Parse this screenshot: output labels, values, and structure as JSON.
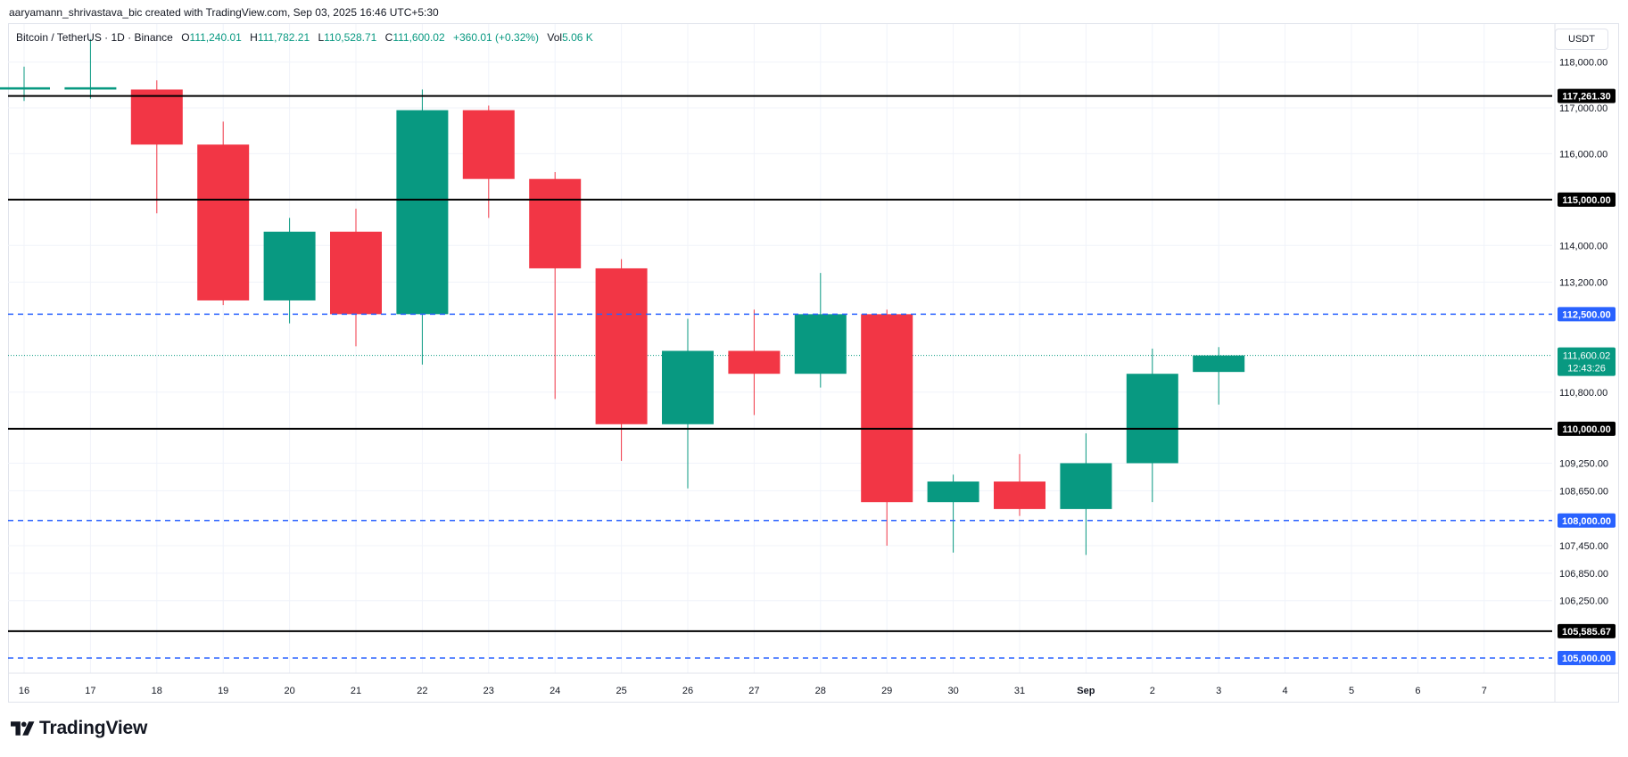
{
  "header": {
    "credit": "aaryamann_shrivastava_bic created with TradingView.com, Sep 03, 2025 16:46 UTC+5:30"
  },
  "legend": {
    "symbol": "Bitcoin / TetherUS · 1D · Binance",
    "o_label": "O",
    "o_value": "111,240.01",
    "h_label": "H",
    "h_value": "111,782.21",
    "l_label": "L",
    "l_value": "110,528.71",
    "c_label": "C",
    "c_value": "111,600.02",
    "change": "+360.01 (+0.32%)",
    "vol_label": "Vol",
    "vol_value": "5.06 K"
  },
  "currency": "USDT",
  "brand": {
    "name": "TradingView",
    "logo": "tradingview-logo-icon"
  },
  "colors": {
    "up": "#089981",
    "down": "#f23645",
    "support_line": "#000000",
    "dashed_line": "#2962ff",
    "grid": "#f0f3fa",
    "price_label": "#089981"
  },
  "chart_data": {
    "type": "candlestick",
    "interval": "1D",
    "x_labels": [
      "16",
      "17",
      "18",
      "19",
      "20",
      "21",
      "22",
      "23",
      "24",
      "25",
      "26",
      "27",
      "28",
      "29",
      "30",
      "31",
      "Sep",
      "2",
      "3",
      "4",
      "5",
      "6",
      "7"
    ],
    "candles": [
      {
        "x": "16",
        "open": 117400,
        "high": 117900,
        "low": 117150,
        "close": 117450
      },
      {
        "x": "17",
        "open": 117400,
        "high": 118500,
        "low": 117200,
        "close": 117450
      },
      {
        "x": "18",
        "open": 117400,
        "high": 117600,
        "low": 114700,
        "close": 116200
      },
      {
        "x": "19",
        "open": 116200,
        "high": 116700,
        "low": 112700,
        "close": 112800
      },
      {
        "x": "20",
        "open": 112800,
        "high": 114600,
        "low": 112300,
        "close": 114300
      },
      {
        "x": "21",
        "open": 114300,
        "high": 114800,
        "low": 111800,
        "close": 112500
      },
      {
        "x": "22",
        "open": 112500,
        "high": 117400,
        "low": 111400,
        "close": 116950
      },
      {
        "x": "23",
        "open": 116950,
        "high": 117050,
        "low": 114600,
        "close": 115450
      },
      {
        "x": "24",
        "open": 115450,
        "high": 115600,
        "low": 110650,
        "close": 113500
      },
      {
        "x": "25",
        "open": 113500,
        "high": 113700,
        "low": 109300,
        "close": 110100
      },
      {
        "x": "26",
        "open": 110100,
        "high": 112400,
        "low": 108700,
        "close": 111700
      },
      {
        "x": "27",
        "open": 111700,
        "high": 112600,
        "low": 110300,
        "close": 111200
      },
      {
        "x": "28",
        "open": 111200,
        "high": 113400,
        "low": 110900,
        "close": 112500
      },
      {
        "x": "29",
        "open": 112500,
        "high": 112600,
        "low": 107450,
        "close": 108400
      },
      {
        "x": "30",
        "open": 108400,
        "high": 109000,
        "low": 107300,
        "close": 108850
      },
      {
        "x": "31",
        "open": 108850,
        "high": 109450,
        "low": 108100,
        "close": 108250
      },
      {
        "x": "Sep",
        "open": 108250,
        "high": 109900,
        "low": 107250,
        "close": 109250
      },
      {
        "x": "2",
        "open": 109250,
        "high": 111750,
        "low": 108400,
        "close": 111200
      },
      {
        "x": "3",
        "open": 111240.01,
        "high": 111782.21,
        "low": 110528.71,
        "close": 111600.02
      }
    ],
    "y_ticks": [
      "118,000.00",
      "117,000.00",
      "116,000.00",
      "114,000.00",
      "113,200.00",
      "110,800.00",
      "109,250.00",
      "108,650.00",
      "107,450.00",
      "106,850.00",
      "106,250.00"
    ],
    "ylim": [
      104700,
      118800
    ],
    "horizontal_lines": [
      {
        "value": 117261.3,
        "label": "117,261.30",
        "style": "solid"
      },
      {
        "value": 115000,
        "label": "115,000.00",
        "style": "solid"
      },
      {
        "value": 112500,
        "label": "112,500.00",
        "style": "dashed"
      },
      {
        "value": 110000,
        "label": "110,000.00",
        "style": "solid"
      },
      {
        "value": 108000,
        "label": "108,000.00",
        "style": "dashed"
      },
      {
        "value": 105585.67,
        "label": "105,585.67",
        "style": "solid"
      },
      {
        "value": 105000,
        "label": "105,000.00",
        "style": "dashed"
      }
    ],
    "last_price": {
      "value": 111600.02,
      "label": "111,600.02",
      "countdown": "12:43:26"
    },
    "grid": true
  }
}
